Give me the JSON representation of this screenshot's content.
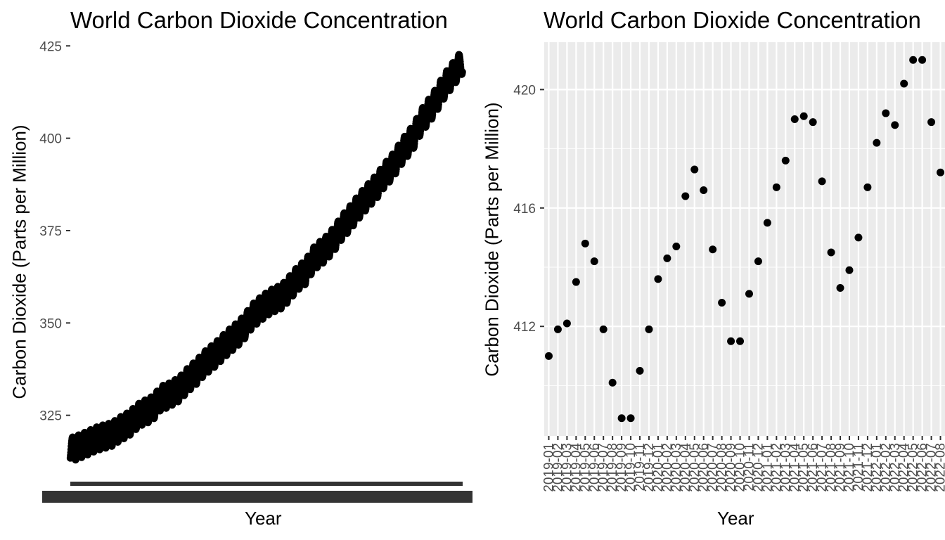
{
  "chart_data": [
    {
      "type": "scatter",
      "title": "World Carbon Dioxide Concentration",
      "xlabel": "Year",
      "ylabel": "Carbon Dioxide (Parts per Million)",
      "ylim": [
        308,
        426
      ],
      "y_ticks": [
        325,
        350,
        375,
        400,
        425
      ],
      "x_tick_labels": "overlapping, illegible",
      "grid": false,
      "background": "#ffffff",
      "series": [
        {
          "values": [
            [
              1958,
              315.7
            ],
            [
              1959,
              316.2
            ],
            [
              1960,
              316.9
            ],
            [
              1961,
              317.6
            ],
            [
              1962,
              318.4
            ],
            [
              1963,
              319.0
            ],
            [
              1964,
              319.4
            ],
            [
              1965,
              319.9
            ],
            [
              1966,
              321.1
            ],
            [
              1967,
              322.0
            ],
            [
              1968,
              323.0
            ],
            [
              1969,
              324.6
            ],
            [
              1970,
              325.7
            ],
            [
              1971,
              326.3
            ],
            [
              1972,
              327.5
            ],
            [
              1973,
              329.7
            ],
            [
              1974,
              330.2
            ],
            [
              1975,
              331.1
            ],
            [
              1976,
              332.0
            ],
            [
              1977,
              333.8
            ],
            [
              1978,
              335.4
            ],
            [
              1979,
              336.8
            ],
            [
              1980,
              338.7
            ],
            [
              1981,
              340.1
            ],
            [
              1982,
              341.4
            ],
            [
              1983,
              343.0
            ],
            [
              1984,
              344.6
            ],
            [
              1985,
              346.0
            ],
            [
              1986,
              347.4
            ],
            [
              1987,
              349.2
            ],
            [
              1988,
              351.6
            ],
            [
              1989,
              353.1
            ],
            [
              1990,
              354.4
            ],
            [
              1991,
              355.6
            ],
            [
              1992,
              356.4
            ],
            [
              1993,
              357.1
            ],
            [
              1994,
              358.8
            ],
            [
              1995,
              360.8
            ],
            [
              1996,
              362.6
            ],
            [
              1997,
              363.7
            ],
            [
              1998,
              366.7
            ],
            [
              1999,
              368.4
            ],
            [
              2000,
              369.6
            ],
            [
              2001,
              371.3
            ],
            [
              2002,
              373.4
            ],
            [
              2003,
              375.9
            ],
            [
              2004,
              377.7
            ],
            [
              2005,
              379.8
            ],
            [
              2006,
              381.9
            ],
            [
              2007,
              383.8
            ],
            [
              2008,
              385.6
            ],
            [
              2009,
              387.4
            ],
            [
              2010,
              389.9
            ],
            [
              2011,
              391.6
            ],
            [
              2012,
              393.9
            ],
            [
              2013,
              396.5
            ],
            [
              2014,
              398.6
            ],
            [
              2015,
              400.8
            ],
            [
              2016,
              404.2
            ],
            [
              2017,
              406.5
            ],
            [
              2018,
              408.7
            ],
            [
              2019,
              411.4
            ],
            [
              2020,
              414.2
            ],
            [
              2021,
              416.4
            ],
            [
              2022,
              418.6
            ]
          ],
          "seasonal_amplitude": 3.2
        }
      ]
    },
    {
      "type": "scatter",
      "title": "World Carbon Dioxide Concentration",
      "xlabel": "Year",
      "ylabel": "Carbon Dioxide (Parts per Million)",
      "ylim": [
        408.3,
        421.6
      ],
      "y_ticks": [
        412,
        416,
        420
      ],
      "grid": true,
      "background": "#ebebeb",
      "x": [
        "2019-01",
        "2019-02",
        "2019-03",
        "2019-04",
        "2019-05",
        "2019-06",
        "2019-07",
        "2019-08",
        "2019-09",
        "2019-10",
        "2019-11",
        "2019-12",
        "2020-01",
        "2020-02",
        "2020-03",
        "2020-04",
        "2020-05",
        "2020-06",
        "2020-07",
        "2020-08",
        "2020-09",
        "2020-10",
        "2020-11",
        "2020-12",
        "2021-01",
        "2021-02",
        "2021-03",
        "2021-04",
        "2021-05",
        "2021-06",
        "2021-07",
        "2021-08",
        "2021-09",
        "2021-10",
        "2021-11",
        "2021-12",
        "2022-01",
        "2022-02",
        "2022-03",
        "2022-04",
        "2022-05",
        "2022-06",
        "2022-07",
        "2022-08"
      ],
      "series": [
        {
          "values": [
            411.0,
            411.9,
            412.1,
            413.5,
            414.8,
            414.2,
            411.9,
            410.1,
            408.9,
            408.9,
            410.5,
            411.9,
            413.6,
            414.3,
            414.7,
            416.4,
            417.3,
            416.6,
            414.6,
            412.8,
            411.5,
            411.5,
            413.1,
            414.2,
            415.5,
            416.7,
            417.6,
            419.0,
            419.1,
            418.9,
            416.9,
            414.5,
            413.3,
            413.9,
            415.0,
            416.7,
            418.2,
            419.2,
            418.8,
            420.2,
            421.0,
            421.0,
            418.9,
            417.2
          ]
        }
      ]
    }
  ]
}
